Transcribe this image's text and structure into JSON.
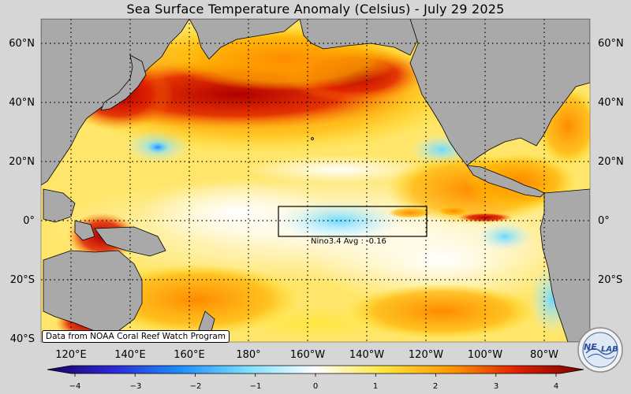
{
  "title": "Sea Surface Temperature Anomaly (Celsius) - July 29 2025",
  "lat_labels": [
    "60°N",
    "40°N",
    "20°N",
    "0°",
    "20°S",
    "40°S"
  ],
  "lon_labels": [
    "120°E",
    "140°E",
    "160°E",
    "180°",
    "160°W",
    "140°W",
    "120°W",
    "100°W",
    "80°W"
  ],
  "nino_box": {
    "label": "Nino3.4 Avg : -0.16",
    "lat_range": [
      -5,
      5
    ],
    "lon_range": [
      "170°W",
      "120°W"
    ]
  },
  "credit": "Data from NOAA Coral Reef Watch Program",
  "colorbar": {
    "ticks": [
      "−4",
      "−3",
      "−2",
      "−1",
      "0",
      "1",
      "2",
      "3",
      "4"
    ],
    "range": [
      -4,
      4
    ],
    "colors": [
      "#1a0066",
      "#2a2ad6",
      "#1e90ff",
      "#7fe0ff",
      "#ffffff",
      "#ffe640",
      "#ff9a00",
      "#e02000",
      "#7a0000"
    ]
  },
  "logo_text": "NEO LAB",
  "colors": {
    "land": "#a9a9a9",
    "background": "#d6d6d6"
  }
}
